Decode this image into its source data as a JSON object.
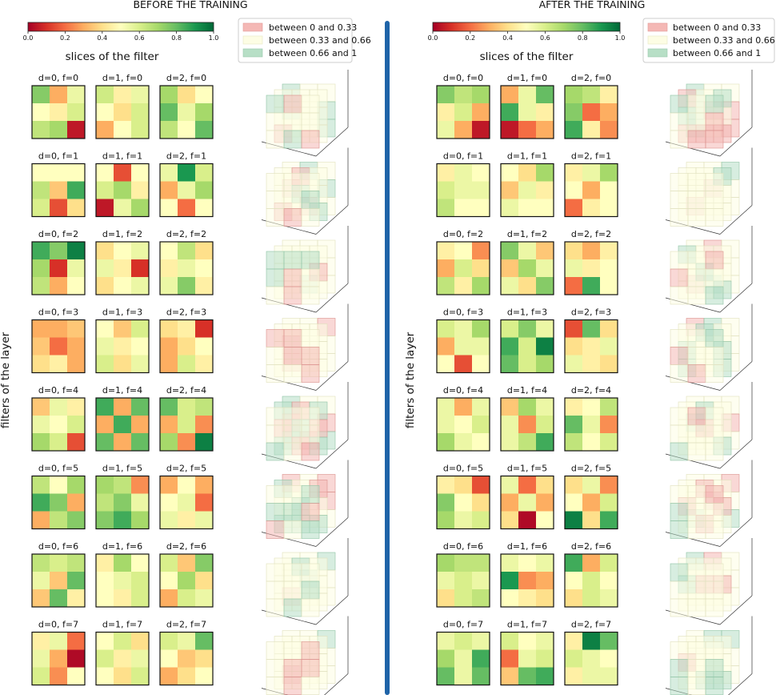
{
  "chart_data": {
    "type": "heatmap",
    "colormap": "RdYlGn",
    "value_range": [
      0,
      1
    ],
    "colorbar_ticks": [
      "0.0",
      "0.2",
      "0.4",
      "0.6",
      "0.8",
      "1.0"
    ],
    "legend": [
      {
        "label": "between 0 and 0.33",
        "color": "#f4b8b5"
      },
      {
        "label": "between 0.33 and 0.66",
        "color": "#fdfde4"
      },
      {
        "label": "between 0.66 and 1",
        "color": "#b7dfc6"
      }
    ],
    "slices_label": "slices of the filter",
    "filters_label": "filters of the layer",
    "divider_color": "#1f64a8",
    "panels": [
      {
        "title": "BEFORE THE TRAINING",
        "filters": [
          [
            [
              [
                0.75,
                0.3,
                0.55
              ],
              [
                0.5,
                0.45,
                0.6
              ],
              [
                0.65,
                0.7,
                0.05
              ]
            ],
            [
              [
                0.62,
                0.45,
                0.55
              ],
              [
                0.5,
                0.4,
                0.6
              ],
              [
                0.3,
                0.5,
                0.6
              ]
            ],
            [
              [
                0.7,
                0.4,
                0.5
              ],
              [
                0.8,
                0.55,
                0.7
              ],
              [
                0.65,
                0.5,
                0.8
              ]
            ]
          ],
          [
            [
              [
                0.5,
                0.5,
                0.5
              ],
              [
                0.65,
                0.35,
                0.85
              ],
              [
                0.6,
                0.15,
                0.4
              ]
            ],
            [
              [
                0.5,
                0.15,
                0.5
              ],
              [
                0.6,
                0.7,
                0.45
              ],
              [
                0.05,
                0.55,
                0.7
              ]
            ],
            [
              [
                0.55,
                0.9,
                0.6
              ],
              [
                0.3,
                0.55,
                0.7
              ],
              [
                0.5,
                0.2,
                0.5
              ]
            ]
          ],
          [
            [
              [
                0.85,
                0.75,
                0.95
              ],
              [
                0.7,
                0.1,
                0.55
              ],
              [
                0.65,
                0.3,
                0.5
              ]
            ],
            [
              [
                0.4,
                0.5,
                0.55
              ],
              [
                0.55,
                0.45,
                0.1
              ],
              [
                0.4,
                0.5,
                0.55
              ]
            ],
            [
              [
                0.5,
                0.65,
                0.4
              ],
              [
                0.45,
                0.55,
                0.5
              ],
              [
                0.55,
                0.75,
                0.45
              ]
            ]
          ],
          [
            [
              [
                0.3,
                0.3,
                0.35
              ],
              [
                0.35,
                0.2,
                0.3
              ],
              [
                0.4,
                0.45,
                0.3
              ]
            ],
            [
              [
                0.5,
                0.35,
                0.6
              ],
              [
                0.55,
                0.45,
                0.5
              ],
              [
                0.6,
                0.4,
                0.55
              ]
            ],
            [
              [
                0.4,
                0.45,
                0.1
              ],
              [
                0.3,
                0.4,
                0.5
              ],
              [
                0.3,
                0.6,
                0.45
              ]
            ]
          ],
          [
            [
              [
                0.35,
                0.55,
                0.45
              ],
              [
                0.55,
                0.5,
                0.6
              ],
              [
                0.7,
                0.6,
                0.15
              ]
            ],
            [
              [
                0.85,
                0.3,
                0.8
              ],
              [
                0.3,
                0.85,
                0.3
              ],
              [
                0.8,
                0.3,
                0.8
              ]
            ],
            [
              [
                0.8,
                0.6,
                0.65
              ],
              [
                0.3,
                0.6,
                0.25
              ],
              [
                0.7,
                0.25,
                0.95
              ]
            ]
          ],
          [
            [
              [
                0.65,
                0.5,
                0.7
              ],
              [
                0.85,
                0.75,
                0.3
              ],
              [
                0.3,
                0.65,
                0.75
              ]
            ],
            [
              [
                0.7,
                0.65,
                0.25
              ],
              [
                0.65,
                0.75,
                0.55
              ],
              [
                0.75,
                0.85,
                0.7
              ]
            ],
            [
              [
                0.3,
                0.5,
                0.3
              ],
              [
                0.5,
                0.55,
                0.2
              ],
              [
                0.55,
                0.45,
                0.55
              ]
            ]
          ],
          [
            [
              [
                0.65,
                0.6,
                0.65
              ],
              [
                0.55,
                0.35,
                0.8
              ],
              [
                0.35,
                0.8,
                0.45
              ]
            ],
            [
              [
                0.45,
                0.7,
                0.5
              ],
              [
                0.5,
                0.55,
                0.6
              ],
              [
                0.5,
                0.45,
                0.6
              ]
            ],
            [
              [
                0.6,
                0.35,
                0.75
              ],
              [
                0.5,
                0.7,
                0.4
              ],
              [
                0.3,
                0.6,
                0.55
              ]
            ]
          ],
          [
            [
              [
                0.45,
                0.55,
                0.2
              ],
              [
                0.55,
                0.3,
                0.02
              ],
              [
                0.6,
                0.25,
                0.5
              ]
            ],
            [
              [
                0.5,
                0.6,
                0.4
              ],
              [
                0.6,
                0.45,
                0.55
              ],
              [
                0.5,
                0.4,
                0.6
              ]
            ],
            [
              [
                0.6,
                0.55,
                0.8
              ],
              [
                0.5,
                0.35,
                0.4
              ],
              [
                0.3,
                0.4,
                0.5
              ]
            ]
          ]
        ]
      },
      {
        "title": "AFTER THE TRAINING",
        "filters": [
          [
            [
              [
                0.75,
                0.65,
                0.7
              ],
              [
                0.45,
                0.6,
                0.3
              ],
              [
                0.55,
                0.3,
                0.05
              ]
            ],
            [
              [
                0.3,
                0.55,
                0.8
              ],
              [
                0.85,
                0.55,
                0.45
              ],
              [
                0.05,
                0.2,
                0.3
              ]
            ],
            [
              [
                0.7,
                0.65,
                0.45
              ],
              [
                0.75,
                0.2,
                0.3
              ],
              [
                0.85,
                0.45,
                0.25
              ]
            ]
          ],
          [
            [
              [
                0.45,
                0.55,
                0.5
              ],
              [
                0.6,
                0.55,
                0.55
              ],
              [
                0.65,
                0.5,
                0.5
              ]
            ],
            [
              [
                0.5,
                0.4,
                0.7
              ],
              [
                0.35,
                0.55,
                0.45
              ],
              [
                0.55,
                0.5,
                0.5
              ]
            ],
            [
              [
                0.45,
                0.55,
                0.7
              ],
              [
                0.5,
                0.3,
                0.5
              ],
              [
                0.2,
                0.45,
                0.5
              ]
            ]
          ],
          [
            [
              [
                0.45,
                0.5,
                0.25
              ],
              [
                0.3,
                0.6,
                0.4
              ],
              [
                0.65,
                0.45,
                0.7
              ]
            ],
            [
              [
                0.75,
                0.55,
                0.35
              ],
              [
                0.35,
                0.7,
                0.55
              ],
              [
                0.55,
                0.4,
                0.75
              ]
            ],
            [
              [
                0.4,
                0.3,
                0.45
              ],
              [
                0.55,
                0.45,
                0.5
              ],
              [
                0.2,
                0.85,
                0.5
              ]
            ]
          ],
          [
            [
              [
                0.6,
                0.55,
                0.7
              ],
              [
                0.3,
                0.55,
                0.55
              ],
              [
                0.5,
                0.15,
                0.5
              ]
            ],
            [
              [
                0.6,
                0.75,
                0.55
              ],
              [
                0.85,
                0.6,
                0.95
              ],
              [
                0.8,
                0.6,
                0.7
              ]
            ],
            [
              [
                0.15,
                0.8,
                0.4
              ],
              [
                0.4,
                0.45,
                0.55
              ],
              [
                0.55,
                0.45,
                0.4
              ]
            ]
          ],
          [
            [
              [
                0.55,
                0.3,
                0.55
              ],
              [
                0.55,
                0.5,
                0.6
              ],
              [
                0.7,
                0.55,
                0.5
              ]
            ],
            [
              [
                0.35,
                0.7,
                0.55
              ],
              [
                0.55,
                0.25,
                0.6
              ],
              [
                0.55,
                0.65,
                0.85
              ]
            ],
            [
              [
                0.45,
                0.5,
                0.65
              ],
              [
                0.8,
                0.55,
                0.25
              ],
              [
                0.65,
                0.5,
                0.6
              ]
            ]
          ],
          [
            [
              [
                0.45,
                0.4,
                0.15
              ],
              [
                0.75,
                0.5,
                0.4
              ],
              [
                0.7,
                0.55,
                0.6
              ]
            ],
            [
              [
                0.55,
                0.2,
                0.4
              ],
              [
                0.3,
                0.55,
                0.3
              ],
              [
                0.4,
                0.02,
                0.5
              ]
            ],
            [
              [
                0.4,
                0.55,
                0.25
              ],
              [
                0.5,
                0.3,
                0.6
              ],
              [
                0.95,
                0.4,
                0.85
              ]
            ]
          ],
          [
            [
              [
                0.7,
                0.65,
                0.65
              ],
              [
                0.55,
                0.6,
                0.55
              ],
              [
                0.4,
                0.6,
                0.65
              ]
            ],
            [
              [
                0.55,
                0.5,
                0.55
              ],
              [
                0.9,
                0.25,
                0.3
              ],
              [
                0.5,
                0.45,
                0.4
              ]
            ],
            [
              [
                0.85,
                0.3,
                0.6
              ],
              [
                0.5,
                0.6,
                0.5
              ],
              [
                0.4,
                0.6,
                0.55
              ]
            ]
          ],
          [
            [
              [
                0.55,
                0.6,
                0.55
              ],
              [
                0.7,
                0.55,
                0.85
              ],
              [
                0.8,
                0.55,
                0.8
              ]
            ],
            [
              [
                0.6,
                0.5,
                0.55
              ],
              [
                0.2,
                0.55,
                0.6
              ],
              [
                0.35,
                0.8,
                0.85
              ]
            ],
            [
              [
                0.45,
                0.95,
                0.8
              ],
              [
                0.6,
                0.55,
                0.5
              ],
              [
                0.45,
                0.55,
                0.55
              ]
            ]
          ]
        ]
      }
    ]
  },
  "slice_title_format": "d={d}, f={f}"
}
